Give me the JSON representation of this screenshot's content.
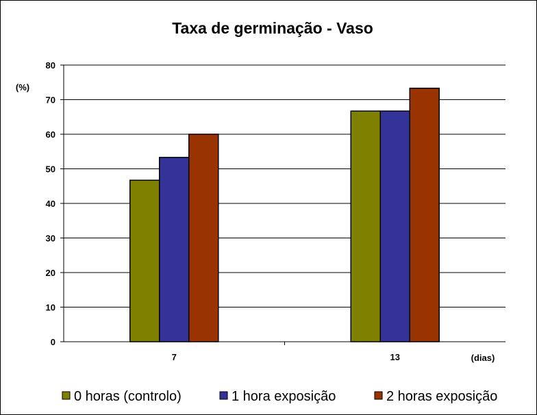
{
  "chart_data": {
    "type": "bar",
    "title": "Taxa de germinação - Vaso",
    "ylabel": "(%)",
    "xlabel": "(dias)",
    "categories": [
      "7",
      "13"
    ],
    "ylim": [
      0,
      80
    ],
    "yticks": [
      0,
      10,
      20,
      30,
      40,
      50,
      60,
      70,
      80
    ],
    "grid": true,
    "legend_position": "bottom",
    "series": [
      {
        "name": "0 horas (controlo)",
        "color": "#808000",
        "values": [
          46.7,
          66.7
        ]
      },
      {
        "name": "1 hora exposição",
        "color": "#333399",
        "values": [
          53.3,
          66.7
        ]
      },
      {
        "name": "2 horas exposição",
        "color": "#993300",
        "values": [
          60.0,
          73.3
        ]
      }
    ]
  }
}
